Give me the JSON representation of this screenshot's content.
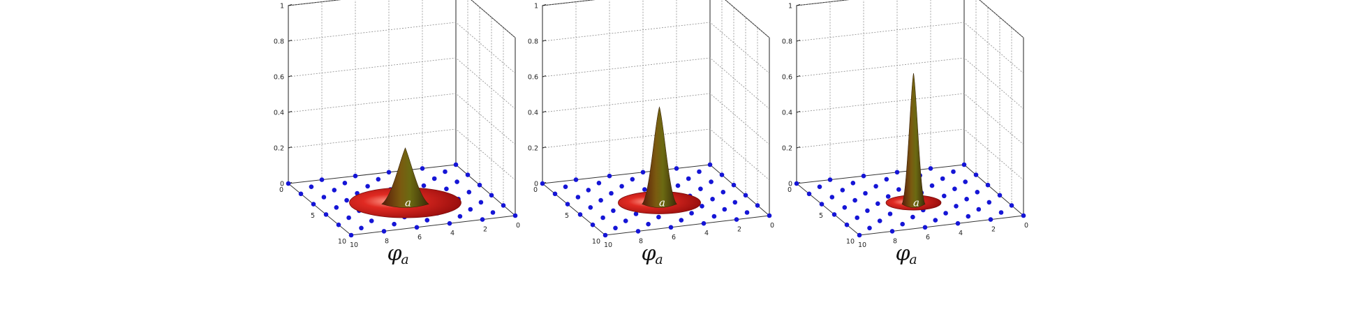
{
  "chart_data": [
    {
      "type": "surface",
      "panel": 1,
      "peak": 0.3,
      "spread": 2.6,
      "center_label": "a",
      "xlabel_symbol": "φ",
      "xlabel_subscript": "a",
      "z_ticks": [
        "0",
        "0.2",
        "0.4",
        "0.6",
        "0.8",
        "1"
      ],
      "left_axis_ticks": [
        "0",
        "5",
        "10"
      ],
      "front_axis_ticks": [
        "10",
        "8",
        "6",
        "4",
        "2",
        "0"
      ],
      "zlim": [
        0,
        1
      ],
      "grid": true,
      "lattice_color": "#1515d6"
    },
    {
      "type": "surface",
      "panel": 2,
      "peak": 0.53,
      "spread": 1.8,
      "center_label": "a",
      "xlabel_symbol": "φ",
      "xlabel_subscript": "a",
      "z_ticks": [
        "0",
        "0.2",
        "0.4",
        "0.6",
        "0.8",
        "1"
      ],
      "left_axis_ticks": [
        "0",
        "5",
        "10"
      ],
      "front_axis_ticks": [
        "10",
        "8",
        "6",
        "4",
        "2",
        "0"
      ],
      "zlim": [
        0,
        1
      ],
      "grid": true,
      "lattice_color": "#1515d6"
    },
    {
      "type": "surface",
      "panel": 3,
      "peak": 0.72,
      "spread": 1.05,
      "center_label": "a",
      "xlabel_symbol": "φ",
      "xlabel_subscript": "a",
      "z_ticks": [
        "0",
        "0.2",
        "0.4",
        "0.6",
        "0.8",
        "1"
      ],
      "left_axis_ticks": [
        "0",
        "5",
        "10"
      ],
      "front_axis_ticks": [
        "10",
        "8",
        "6",
        "4",
        "2",
        "0"
      ],
      "zlim": [
        0,
        1
      ],
      "grid": true,
      "lattice_color": "#1515d6"
    }
  ]
}
